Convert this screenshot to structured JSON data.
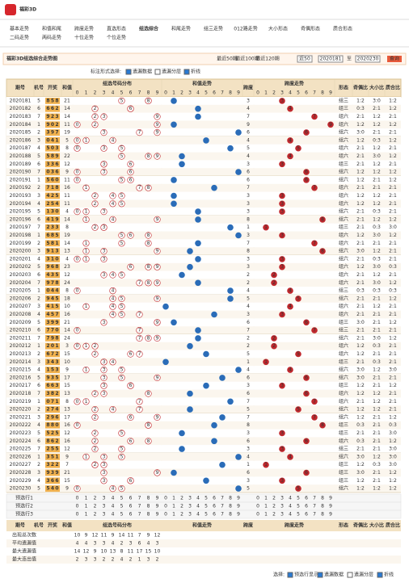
{
  "header": {
    "logo": "福彩3D"
  },
  "nav": {
    "row1": [
      "基本走势",
      "和值和尾",
      "跨度走势",
      "直选形态",
      "组选综合",
      "和尾走势",
      "组三走势",
      "012路走势",
      "大小形态",
      "奇偶形态",
      "质合形态"
    ],
    "row2": [
      "二码走势",
      "两码走势",
      "十位走势",
      "个位走势"
    ],
    "active": 4
  },
  "titlebar": {
    "title": "福彩3D组选综合走势图",
    "recent": [
      "最近50期",
      "最近100期",
      "最近120期"
    ],
    "select": "近50",
    "from": "2020181",
    "to_label": "至",
    "to": "2020230",
    "query": "查询"
  },
  "controls": {
    "label": "标注形式选择:",
    "options": [
      "遗漏数据",
      "遗漏分层",
      "折线"
    ]
  },
  "table": {
    "headers": {
      "issue": "期号",
      "machine": "机号",
      "draw": "开奖",
      "sum": "和值",
      "dist": "组选号码分布",
      "sumtail": "和值走势",
      "span": "跨度",
      "spantrend": "跨度走势",
      "form": "形态",
      "oe": "奇偶比",
      "bs": "大小比",
      "pc": "质合比"
    },
    "digits": [
      "0",
      "1",
      "2",
      "3",
      "4",
      "5",
      "6",
      "7",
      "8",
      "9"
    ],
    "rows": [
      {
        "issue": "2020181",
        "machine": 5,
        "draw": [
          8,
          5,
          8
        ],
        "sum": 21,
        "span": 3,
        "form": "组三",
        "oe": "1:2",
        "bs": "3:0",
        "pc": "1:2"
      },
      {
        "issue": "2020182",
        "machine": 6,
        "draw": [
          6,
          6,
          2
        ],
        "sum": 14,
        "span": 4,
        "form": "组三",
        "oe": "0:3",
        "bs": "2:1",
        "pc": "1:2"
      },
      {
        "issue": "2020183",
        "machine": 7,
        "draw": [
          9,
          2,
          3
        ],
        "sum": 14,
        "span": 7,
        "form": "组六",
        "oe": "2:1",
        "bs": "1:2",
        "pc": "2:1"
      },
      {
        "issue": "2020184",
        "machine": 1,
        "draw": [
          9,
          0,
          2
        ],
        "sum": 11,
        "span": 9,
        "form": "组六",
        "oe": "1:2",
        "bs": "1:2",
        "pc": "1:2"
      },
      {
        "issue": "2020185",
        "machine": 2,
        "draw": [
          3,
          9,
          7
        ],
        "sum": 19,
        "span": 6,
        "form": "组六",
        "oe": "3:0",
        "bs": "2:1",
        "pc": "2:1"
      },
      {
        "issue": "2020186",
        "machine": 3,
        "draw": [
          0,
          4,
          1
        ],
        "sum": 5,
        "span": 4,
        "form": "组六",
        "oe": "1:2",
        "bs": "0:3",
        "pc": "1:2"
      },
      {
        "issue": "2020187",
        "machine": 4,
        "draw": [
          5,
          0,
          3
        ],
        "sum": 8,
        "span": 5,
        "form": "组六",
        "oe": "2:1",
        "bs": "1:2",
        "pc": "2:1"
      },
      {
        "issue": "2020188",
        "machine": 5,
        "draw": [
          5,
          8,
          9
        ],
        "sum": 22,
        "span": 4,
        "form": "组六",
        "oe": "2:1",
        "bs": "3:0",
        "pc": "1:2"
      },
      {
        "issue": "2020189",
        "machine": 6,
        "draw": [
          3,
          3,
          6
        ],
        "sum": 12,
        "span": 3,
        "form": "组三",
        "oe": "2:1",
        "bs": "1:2",
        "pc": "2:1"
      },
      {
        "issue": "2020190",
        "machine": 7,
        "draw": [
          0,
          3,
          6
        ],
        "sum": 9,
        "span": 6,
        "form": "组六",
        "oe": "1:2",
        "bs": "1:2",
        "pc": "1:2"
      },
      {
        "issue": "2020191",
        "machine": 1,
        "draw": [
          5,
          6,
          0
        ],
        "sum": 11,
        "span": 6,
        "form": "组六",
        "oe": "1:2",
        "bs": "2:1",
        "pc": "1:2"
      },
      {
        "issue": "2020192",
        "machine": 2,
        "draw": [
          7,
          1,
          8
        ],
        "sum": 16,
        "span": 7,
        "form": "组六",
        "oe": "2:1",
        "bs": "2:1",
        "pc": "2:1"
      },
      {
        "issue": "2020193",
        "machine": 3,
        "draw": [
          4,
          2,
          5
        ],
        "sum": 11,
        "span": 3,
        "form": "组六",
        "oe": "1:2",
        "bs": "1:2",
        "pc": "2:1"
      },
      {
        "issue": "2020194",
        "machine": 4,
        "draw": [
          2,
          5,
          4
        ],
        "sum": 11,
        "span": 3,
        "form": "组六",
        "oe": "1:2",
        "bs": "1:2",
        "pc": "2:1"
      },
      {
        "issue": "2020195",
        "machine": 5,
        "draw": [
          1,
          3,
          0
        ],
        "sum": 4,
        "span": 3,
        "form": "组六",
        "oe": "2:1",
        "bs": "0:3",
        "pc": "2:1"
      },
      {
        "issue": "2020196",
        "machine": 6,
        "draw": [
          4,
          1,
          9
        ],
        "sum": 14,
        "span": 8,
        "form": "组六",
        "oe": "2:1",
        "bs": "1:2",
        "pc": "1:2"
      },
      {
        "issue": "2020197",
        "machine": 7,
        "draw": [
          2,
          3,
          3
        ],
        "sum": 8,
        "span": 1,
        "form": "组三",
        "oe": "2:1",
        "bs": "0:3",
        "pc": "3:0"
      },
      {
        "issue": "2020198",
        "machine": 1,
        "draw": [
          6,
          8,
          5
        ],
        "sum": 19,
        "span": 3,
        "form": "组六",
        "oe": "1:2",
        "bs": "3:0",
        "pc": "1:2"
      },
      {
        "issue": "2020199",
        "machine": 2,
        "draw": [
          5,
          8,
          1
        ],
        "sum": 14,
        "span": 7,
        "form": "组六",
        "oe": "2:1",
        "bs": "2:1",
        "pc": "2:1"
      },
      {
        "issue": "2020200",
        "machine": 3,
        "draw": [
          9,
          1,
          3
        ],
        "sum": 13,
        "span": 8,
        "form": "组六",
        "oe": "3:0",
        "bs": "1:2",
        "pc": "2:1"
      },
      {
        "issue": "2020201",
        "machine": 4,
        "draw": [
          3,
          1,
          0
        ],
        "sum": 4,
        "span": 3,
        "form": "组六",
        "oe": "2:1",
        "bs": "0:3",
        "pc": "2:1"
      },
      {
        "issue": "2020202",
        "machine": 5,
        "draw": [
          9,
          6,
          8
        ],
        "sum": 23,
        "span": 3,
        "form": "组六",
        "oe": "1:2",
        "bs": "3:0",
        "pc": "0:3"
      },
      {
        "issue": "2020203",
        "machine": 6,
        "draw": [
          4,
          3,
          5
        ],
        "sum": 12,
        "span": 2,
        "form": "组六",
        "oe": "2:1",
        "bs": "1:2",
        "pc": "2:1"
      },
      {
        "issue": "2020204",
        "machine": 7,
        "draw": [
          9,
          7,
          8
        ],
        "sum": 24,
        "span": 2,
        "form": "组六",
        "oe": "2:1",
        "bs": "3:0",
        "pc": "1:2"
      },
      {
        "issue": "2020205",
        "machine": 1,
        "draw": [
          0,
          4,
          4
        ],
        "sum": 8,
        "span": 4,
        "form": "组三",
        "oe": "0:3",
        "bs": "0:3",
        "pc": "0:3"
      },
      {
        "issue": "2020206",
        "machine": 2,
        "draw": [
          9,
          4,
          5
        ],
        "sum": 18,
        "span": 5,
        "form": "组六",
        "oe": "2:1",
        "bs": "2:1",
        "pc": "1:2"
      },
      {
        "issue": "2020207",
        "machine": 3,
        "draw": [
          4,
          1,
          5
        ],
        "sum": 10,
        "span": 4,
        "form": "组六",
        "oe": "2:1",
        "bs": "1:2",
        "pc": "2:1"
      },
      {
        "issue": "2020208",
        "machine": 4,
        "draw": [
          4,
          5,
          7
        ],
        "sum": 16,
        "span": 3,
        "form": "组六",
        "oe": "2:1",
        "bs": "2:1",
        "pc": "2:1"
      },
      {
        "issue": "2020209",
        "machine": 5,
        "draw": [
          3,
          9,
          9
        ],
        "sum": 21,
        "span": 6,
        "form": "组三",
        "oe": "3:0",
        "bs": "2:1",
        "pc": "1:2"
      },
      {
        "issue": "2020210",
        "machine": 6,
        "draw": [
          7,
          7,
          0
        ],
        "sum": 14,
        "span": 7,
        "form": "组三",
        "oe": "2:1",
        "bs": "2:1",
        "pc": "2:1"
      },
      {
        "issue": "2020211",
        "machine": 7,
        "draw": [
          7,
          9,
          8
        ],
        "sum": 24,
        "span": 2,
        "form": "组六",
        "oe": "2:1",
        "bs": "3:0",
        "pc": "1:2"
      },
      {
        "issue": "2020212",
        "machine": 1,
        "draw": [
          2,
          0,
          1
        ],
        "sum": 3,
        "span": 2,
        "form": "组六",
        "oe": "1:2",
        "bs": "0:3",
        "pc": "2:1"
      },
      {
        "issue": "2020213",
        "machine": 2,
        "draw": [
          6,
          7,
          2
        ],
        "sum": 15,
        "span": 5,
        "form": "组六",
        "oe": "1:2",
        "bs": "2:1",
        "pc": "2:1"
      },
      {
        "issue": "2020214",
        "machine": 3,
        "draw": [
          3,
          4,
          3
        ],
        "sum": 10,
        "span": 1,
        "form": "组三",
        "oe": "2:1",
        "bs": "0:3",
        "pc": "2:1"
      },
      {
        "issue": "2020215",
        "machine": 4,
        "draw": [
          1,
          5,
          3
        ],
        "sum": 9,
        "span": 4,
        "form": "组六",
        "oe": "3:0",
        "bs": "1:2",
        "pc": "3:0"
      },
      {
        "issue": "2020216",
        "machine": 5,
        "draw": [
          9,
          3,
          5
        ],
        "sum": 17,
        "span": 6,
        "form": "组六",
        "oe": "3:0",
        "bs": "2:1",
        "pc": "2:1"
      },
      {
        "issue": "2020217",
        "machine": 6,
        "draw": [
          6,
          6,
          3
        ],
        "sum": 15,
        "span": 3,
        "form": "组三",
        "oe": "1:2",
        "bs": "2:1",
        "pc": "1:2"
      },
      {
        "issue": "2020218",
        "machine": 7,
        "draw": [
          3,
          8,
          2
        ],
        "sum": 13,
        "span": 6,
        "form": "组六",
        "oe": "1:2",
        "bs": "1:2",
        "pc": "2:1"
      },
      {
        "issue": "2020219",
        "machine": 1,
        "draw": [
          0,
          7,
          1
        ],
        "sum": 8,
        "span": 7,
        "form": "组六",
        "oe": "2:1",
        "bs": "1:2",
        "pc": "2:1"
      },
      {
        "issue": "2020220",
        "machine": 2,
        "draw": [
          2,
          7,
          4
        ],
        "sum": 13,
        "span": 5,
        "form": "组六",
        "oe": "1:2",
        "bs": "1:2",
        "pc": "2:1"
      },
      {
        "issue": "2020221",
        "machine": 3,
        "draw": [
          2,
          9,
          6
        ],
        "sum": 17,
        "span": 7,
        "form": "组六",
        "oe": "1:2",
        "bs": "2:1",
        "pc": "1:2"
      },
      {
        "issue": "2020222",
        "machine": 4,
        "draw": [
          8,
          8,
          0
        ],
        "sum": 16,
        "span": 8,
        "form": "组三",
        "oe": "0:3",
        "bs": "2:1",
        "pc": "0:3"
      },
      {
        "issue": "2020223",
        "machine": 5,
        "draw": [
          5,
          2,
          5
        ],
        "sum": 12,
        "span": 3,
        "form": "组三",
        "oe": "2:1",
        "bs": "2:1",
        "pc": "3:0"
      },
      {
        "issue": "2020224",
        "machine": 6,
        "draw": [
          8,
          6,
          2
        ],
        "sum": 16,
        "span": 6,
        "form": "组六",
        "oe": "0:3",
        "bs": "2:1",
        "pc": "1:2"
      },
      {
        "issue": "2020225",
        "machine": 7,
        "draw": [
          2,
          5,
          5
        ],
        "sum": 12,
        "span": 3,
        "form": "组三",
        "oe": "2:1",
        "bs": "2:1",
        "pc": "3:0"
      },
      {
        "issue": "2020226",
        "machine": 1,
        "draw": [
          3,
          5,
          1
        ],
        "sum": 9,
        "span": 4,
        "form": "组六",
        "oe": "3:0",
        "bs": "1:2",
        "pc": "3:0"
      },
      {
        "issue": "2020227",
        "machine": 2,
        "draw": [
          3,
          2,
          2
        ],
        "sum": 7,
        "span": 1,
        "form": "组三",
        "oe": "1:2",
        "bs": "0:3",
        "pc": "3:0"
      },
      {
        "issue": "2020228",
        "machine": 3,
        "draw": [
          9,
          3,
          9
        ],
        "sum": 21,
        "span": 6,
        "form": "组三",
        "oe": "3:0",
        "bs": "2:1",
        "pc": "1:2"
      },
      {
        "issue": "2020229",
        "machine": 4,
        "draw": [
          3,
          6,
          6
        ],
        "sum": 15,
        "span": 3,
        "form": "组三",
        "oe": "1:2",
        "bs": "2:1",
        "pc": "1:2"
      },
      {
        "issue": "2020230",
        "machine": 5,
        "draw": [
          5,
          4,
          0
        ],
        "sum": 9,
        "span": 5,
        "form": "组六",
        "oe": "1:2",
        "bs": "1:2",
        "pc": "1:2"
      }
    ],
    "preselect": [
      "预选行1",
      "预选行2",
      "预选行3"
    ],
    "stats": [
      {
        "label": "出现总次数",
        "values": [
          10,
          9,
          12,
          11,
          9,
          14,
          11,
          7,
          9,
          12
        ]
      },
      {
        "label": "平均遗漏值",
        "values": [
          4,
          4,
          3,
          3,
          4,
          2,
          3,
          6,
          4,
          3
        ]
      },
      {
        "label": "最大遗漏值",
        "values": [
          14,
          12,
          9,
          10,
          13,
          8,
          11,
          17,
          15,
          10
        ]
      },
      {
        "label": "最大连出值",
        "values": [
          2,
          3,
          3,
          2,
          2,
          4,
          2,
          1,
          3,
          2
        ]
      }
    ]
  },
  "footer": {
    "label": "选择:",
    "options": [
      "预选行显示",
      "遗漏数据",
      "遗漏分层",
      "折线"
    ]
  }
}
